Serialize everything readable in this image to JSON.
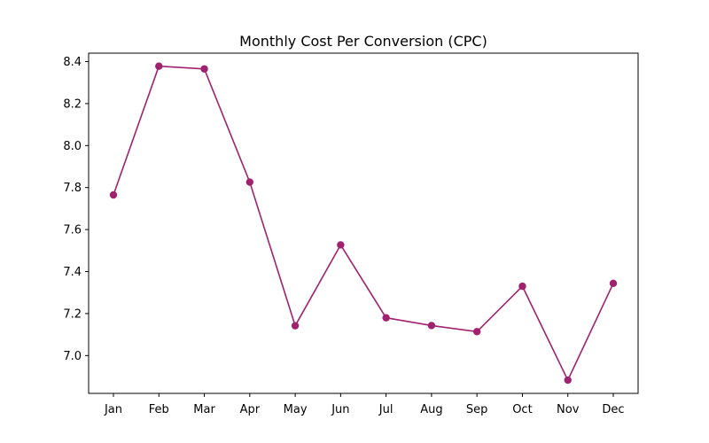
{
  "chart_data": {
    "type": "line",
    "title": "Monthly Cost Per Conversion (CPC)",
    "xlabel": "",
    "ylabel": "",
    "categories": [
      "Jan",
      "Feb",
      "Mar",
      "Apr",
      "May",
      "Jun",
      "Jul",
      "Aug",
      "Sep",
      "Oct",
      "Nov",
      "Dec"
    ],
    "series": [
      {
        "values": [
          7.765,
          8.378,
          8.365,
          7.826,
          7.142,
          7.527,
          7.18,
          7.143,
          7.114,
          7.33,
          6.883,
          7.344
        ]
      }
    ],
    "ylim": [
      6.82,
      8.44
    ],
    "yticks": [
      7.0,
      7.2,
      7.4,
      7.6,
      7.8,
      8.0,
      8.2,
      8.4
    ],
    "ytick_labels": [
      "7.0",
      "7.2",
      "7.4",
      "7.6",
      "7.8",
      "8.0",
      "8.2",
      "8.4"
    ],
    "grid": false,
    "legend": "none",
    "marker": "circle",
    "line_color": "#a0226e"
  }
}
